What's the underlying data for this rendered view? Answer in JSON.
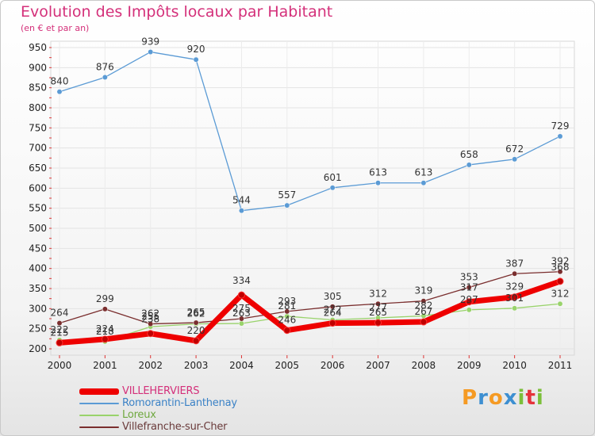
{
  "header": {
    "title": "Evolution des Impôts locaux par Habitant",
    "subtitle": "(en € et par an)"
  },
  "logo": {
    "letters": [
      "P",
      "r",
      "o",
      "x",
      "i",
      "t",
      "i"
    ],
    "colors": [
      "#f59a23",
      "#3d8fd1",
      "#f59a23",
      "#3d8fd1",
      "#7cbf3a",
      "#e5323b",
      "#7cbf3a"
    ]
  },
  "chart_data": {
    "type": "line",
    "title": "Evolution des Impôts locaux par Habitant",
    "subtitle": "(en € et par an)",
    "xlabel": "",
    "ylabel": "",
    "x": [
      "2000",
      "2001",
      "2002",
      "2003",
      "2004",
      "2005",
      "2006",
      "2007",
      "2008",
      "2009",
      "2010",
      "2011"
    ],
    "ylim": [
      200,
      950
    ],
    "yticks": [
      200,
      250,
      300,
      350,
      400,
      450,
      500,
      550,
      600,
      650,
      700,
      750,
      800,
      850,
      900,
      950
    ],
    "grid": true,
    "legend_position": "bottom-left",
    "series": [
      {
        "name": "VILLEHERVIERS",
        "color": "#ee0000",
        "width": 7,
        "values": [
          215,
          224,
          238,
          220,
          334,
          246,
          264,
          265,
          267,
          317,
          329,
          368
        ],
        "labels": [
          "215",
          "224",
          "238",
          "220",
          "334",
          "246",
          "264",
          "265",
          "267",
          "317",
          "329",
          "368"
        ],
        "show_labels": false
      },
      {
        "name": "Romorantin-Lanthenay",
        "color": "#5b9bd5",
        "width": 1.3,
        "values": [
          840,
          876,
          939,
          920,
          544,
          557,
          601,
          613,
          613,
          658,
          672,
          729
        ],
        "labels": [
          "840",
          "876",
          "939",
          "920",
          "544",
          "557",
          "601",
          "613",
          "613",
          "658",
          "672",
          "729"
        ],
        "show_labels": true
      },
      {
        "name": "Loreux",
        "color": "#99d36b",
        "width": 1.3,
        "values": [
          222,
          218,
          255,
          262,
          263,
          281,
          272,
          277,
          282,
          297,
          301,
          312
        ],
        "labels": [
          "222",
          "218",
          "255",
          "262",
          "263",
          "281",
          "272",
          "277",
          "282",
          "297",
          "301",
          "312"
        ],
        "show_labels": true
      },
      {
        "name": "Villefranche-sur-Cher",
        "color": "#7a2e2e",
        "width": 1.3,
        "values": [
          264,
          299,
          262,
          265,
          275,
          293,
          305,
          312,
          319,
          353,
          387,
          392
        ],
        "labels": [
          "264",
          "299",
          "262",
          "265",
          "275",
          "293",
          "305",
          "312",
          "319",
          "353",
          "387",
          "392"
        ],
        "show_labels": true
      }
    ],
    "overlay_labels": [
      {
        "series": 0,
        "index": 0,
        "text": "215"
      },
      {
        "series": 0,
        "index": 1,
        "text": "224"
      },
      {
        "series": 0,
        "index": 2,
        "text": "238"
      },
      {
        "series": 0,
        "index": 3,
        "text": "220"
      },
      {
        "series": 0,
        "index": 4,
        "text": "334"
      },
      {
        "series": 0,
        "index": 5,
        "text": "246"
      },
      {
        "series": 0,
        "index": 6,
        "text": "264"
      },
      {
        "series": 0,
        "index": 7,
        "text": "265"
      },
      {
        "series": 0,
        "index": 8,
        "text": "267"
      },
      {
        "series": 0,
        "index": 9,
        "text": "317"
      },
      {
        "series": 0,
        "index": 10,
        "text": "329"
      },
      {
        "series": 0,
        "index": 11,
        "text": "368"
      }
    ]
  }
}
